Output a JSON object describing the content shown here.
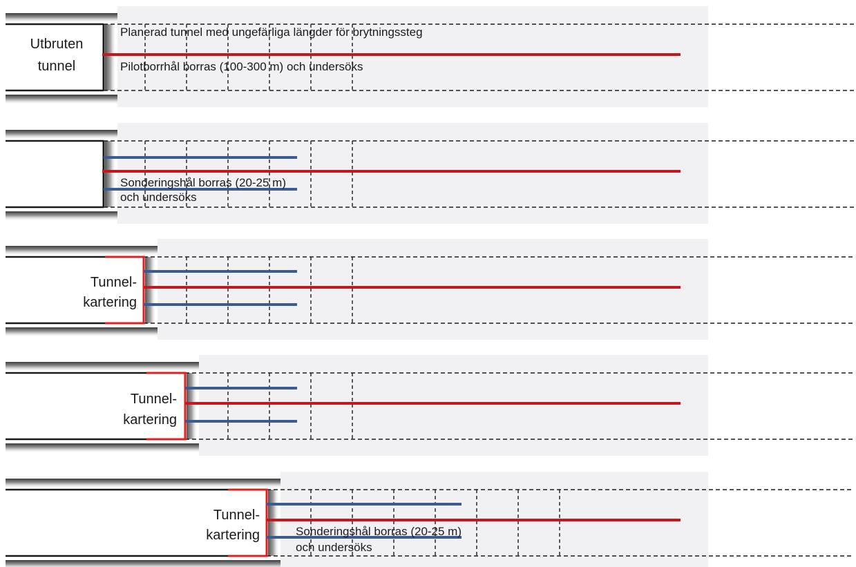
{
  "stages": [
    {
      "face_label": [
        "Utbruten",
        "tunnel"
      ],
      "texts": [
        "Planerad tunnel med ungefärliga längder för brytningssteg",
        "Pilotborrhål borras (100-300 m) och undersöks"
      ]
    },
    {
      "face_label": [],
      "texts": [
        "Sonderingshål borras (20-25 m)",
        "och undersöks"
      ]
    },
    {
      "face_label": [
        "Tunnel-",
        "kartering"
      ],
      "texts": []
    },
    {
      "face_label": [
        "Tunnel-",
        "kartering"
      ],
      "texts": []
    },
    {
      "face_label": [
        "Tunnel-",
        "kartering"
      ],
      "texts": [
        "Sonderingshål borras (20-25 m)",
        "och undersöks"
      ]
    }
  ],
  "colors": {
    "pilot_hole": "#c8161d",
    "probe_hole": "#3c5a94",
    "mapped_face": "#e02020",
    "band": "#f1f1f4",
    "rock_wall": "#1a1a1a"
  }
}
